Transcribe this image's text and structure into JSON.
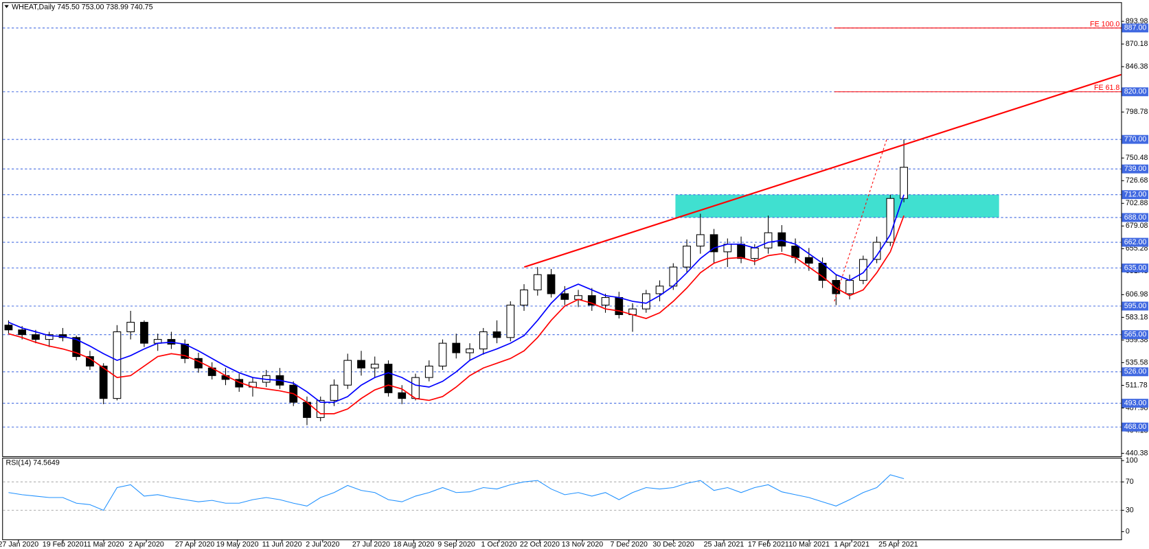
{
  "chart_data": [
    {
      "type": "candlestick",
      "title": "WHEAT,Daily  745.50 753.00 738.99 740.75",
      "x": [
        "20 Jan 2020",
        "27 Jan 2020",
        "3 Feb 2020",
        "10 Feb 2020",
        "17 Feb 2020",
        "24 Feb 2020",
        "2 Mar 2020",
        "9 Mar 2020",
        "16 Mar 2020",
        "23 Mar 2020",
        "30 Mar 2020",
        "6 Apr 2020",
        "13 Apr 2020",
        "20 Apr 2020",
        "27 Apr 2020",
        "4 May 2020",
        "11 May 2020",
        "18 May 2020",
        "25 May 2020",
        "1 Jun 2020",
        "8 Jun 2020",
        "15 Jun 2020",
        "22 Jun 2020",
        "29 Jun 2020",
        "6 Jul 2020",
        "13 Jul 2020",
        "20 Jul 2020",
        "27 Jul 2020",
        "3 Aug 2020",
        "10 Aug 2020",
        "17 Aug 2020",
        "24 Aug 2020",
        "31 Aug 2020",
        "7 Sep 2020",
        "14 Sep 2020",
        "21 Sep 2020",
        "28 Sep 2020",
        "5 Oct 2020",
        "12 Oct 2020",
        "19 Oct 2020",
        "26 Oct 2020",
        "2 Nov 2020",
        "9 Nov 2020",
        "16 Nov 2020",
        "23 Nov 2020",
        "30 Nov 2020",
        "7 Dec 2020",
        "14 Dec 2020",
        "21 Dec 2020",
        "28 Dec 2020",
        "4 Jan 2021",
        "11 Jan 2021",
        "18 Jan 2021",
        "25 Jan 2021",
        "1 Feb 2021",
        "8 Feb 2021",
        "15 Feb 2021",
        "22 Feb 2021",
        "1 Mar 2021",
        "8 Mar 2021",
        "15 Mar 2021",
        "22 Mar 2021",
        "29 Mar 2021",
        "5 Apr 2021",
        "12 Apr 2021",
        "19 Apr 2021",
        "26 Apr 2021"
      ],
      "ohlc": [
        [
          575,
          580,
          566,
          570
        ],
        [
          570,
          574,
          560,
          565
        ],
        [
          565,
          570,
          556,
          560
        ],
        [
          560,
          568,
          552,
          565
        ],
        [
          565,
          572,
          558,
          562
        ],
        [
          562,
          564,
          538,
          542
        ],
        [
          542,
          548,
          528,
          532
        ],
        [
          532,
          535,
          492,
          498
        ],
        [
          498,
          575,
          496,
          568
        ],
        [
          568,
          590,
          560,
          578
        ],
        [
          578,
          580,
          552,
          556
        ],
        [
          556,
          566,
          548,
          560
        ],
        [
          560,
          568,
          550,
          555
        ],
        [
          555,
          560,
          535,
          540
        ],
        [
          540,
          546,
          525,
          530
        ],
        [
          530,
          536,
          518,
          522
        ],
        [
          522,
          530,
          512,
          518
        ],
        [
          518,
          524,
          505,
          510
        ],
        [
          510,
          520,
          500,
          515
        ],
        [
          515,
          528,
          510,
          522
        ],
        [
          522,
          530,
          508,
          512
        ],
        [
          512,
          516,
          490,
          494
        ],
        [
          494,
          500,
          470,
          478
        ],
        [
          478,
          500,
          474,
          496
        ],
        [
          496,
          518,
          490,
          512
        ],
        [
          512,
          545,
          508,
          538
        ],
        [
          538,
          548,
          522,
          530
        ],
        [
          530,
          542,
          520,
          534
        ],
        [
          534,
          538,
          500,
          504
        ],
        [
          504,
          512,
          492,
          498
        ],
        [
          498,
          524,
          496,
          520
        ],
        [
          520,
          538,
          516,
          532
        ],
        [
          532,
          560,
          528,
          556
        ],
        [
          556,
          566,
          540,
          546
        ],
        [
          546,
          556,
          538,
          550
        ],
        [
          550,
          572,
          544,
          568
        ],
        [
          568,
          580,
          556,
          562
        ],
        [
          562,
          600,
          558,
          596
        ],
        [
          596,
          618,
          590,
          612
        ],
        [
          612,
          636,
          606,
          628
        ],
        [
          628,
          634,
          604,
          608
        ],
        [
          608,
          616,
          596,
          602
        ],
        [
          602,
          612,
          594,
          606
        ],
        [
          606,
          614,
          590,
          596
        ],
        [
          596,
          608,
          588,
          604
        ],
        [
          604,
          610,
          582,
          586
        ],
        [
          586,
          598,
          568,
          592
        ],
        [
          592,
          612,
          588,
          608
        ],
        [
          608,
          622,
          600,
          616
        ],
        [
          616,
          640,
          612,
          636
        ],
        [
          636,
          665,
          630,
          658
        ],
        [
          658,
          692,
          650,
          670
        ],
        [
          670,
          676,
          640,
          652
        ],
        [
          652,
          666,
          636,
          660
        ],
        [
          660,
          668,
          640,
          645
        ],
        [
          645,
          660,
          638,
          656
        ],
        [
          656,
          690,
          650,
          672
        ],
        [
          672,
          680,
          652,
          658
        ],
        [
          658,
          666,
          640,
          646
        ],
        [
          646,
          656,
          632,
          640
        ],
        [
          640,
          646,
          614,
          622
        ],
        [
          622,
          628,
          596,
          608
        ],
        [
          608,
          628,
          602,
          622
        ],
        [
          622,
          648,
          618,
          644
        ],
        [
          644,
          668,
          640,
          662
        ],
        [
          662,
          712,
          658,
          708
        ],
        [
          708,
          770,
          704,
          740.75
        ]
      ],
      "overlays": [
        {
          "color": "#0000ff",
          "values": [
            578,
            572,
            568,
            564,
            563,
            560,
            553,
            545,
            538,
            543,
            550,
            556,
            557,
            555,
            548,
            540,
            532,
            525,
            520,
            518,
            517,
            514,
            505,
            494,
            494,
            500,
            512,
            520,
            525,
            520,
            512,
            510,
            516,
            526,
            538,
            545,
            550,
            556,
            564,
            580,
            598,
            612,
            618,
            612,
            606,
            604,
            600,
            598,
            606,
            616,
            630,
            645,
            656,
            660,
            660,
            656,
            662,
            664,
            660,
            650,
            640,
            628,
            622,
            630,
            648,
            670,
            712
          ]
        },
        {
          "color": "#ff0000",
          "values": [
            566,
            562,
            557,
            553,
            550,
            546,
            540,
            530,
            520,
            522,
            532,
            542,
            545,
            543,
            537,
            530,
            522,
            515,
            510,
            508,
            506,
            503,
            494,
            482,
            482,
            487,
            498,
            507,
            512,
            508,
            498,
            496,
            500,
            510,
            522,
            530,
            535,
            540,
            548,
            562,
            580,
            595,
            602,
            598,
            592,
            590,
            586,
            582,
            588,
            600,
            614,
            630,
            640,
            645,
            646,
            642,
            648,
            650,
            646,
            636,
            626,
            614,
            606,
            612,
            630,
            652,
            690
          ]
        }
      ],
      "xlim": [
        "19 Jan 2020",
        "18 Aug 2021"
      ],
      "xticks": [
        "27 Jan 2020",
        "19 Feb 2020",
        "11 Mar 2020",
        "2 Apr 2020",
        "27 Apr 2020",
        "19 May 2020",
        "11 Jun 2020",
        "2 Jul 2020",
        "27 Jul 2020",
        "18 Aug 2020",
        "9 Sep 2020",
        "1 Oct 2020",
        "22 Oct 2020",
        "13 Nov 2020",
        "7 Dec 2020",
        "30 Dec 2020",
        "25 Jan 2021",
        "17 Feb 2021",
        "10 Mar 2021",
        "1 Apr 2021",
        "25 Apr 2021"
      ],
      "ylim": [
        437.3,
        913.3
      ],
      "yticks": [
        893.98,
        870.18,
        846.38,
        798.78,
        750.48,
        726.68,
        702.88,
        679.08,
        655.28,
        631.48,
        606.98,
        583.18,
        559.38,
        535.58,
        511.78,
        487.98,
        464.18,
        440.38
      ],
      "levels": [
        {
          "value": 887,
          "label": "887.00"
        },
        {
          "value": 820,
          "label": "820.00"
        },
        {
          "value": 770,
          "label": "770.00"
        },
        {
          "value": 739,
          "label": "739.00"
        },
        {
          "value": 712,
          "label": "712.00"
        },
        {
          "value": 688,
          "label": "688.00"
        },
        {
          "value": 662,
          "label": "662.00"
        },
        {
          "value": 635,
          "label": "635.00"
        },
        {
          "value": 595,
          "label": "595.00"
        },
        {
          "value": 565,
          "label": "565.00"
        },
        {
          "value": 526,
          "label": "526.00"
        },
        {
          "value": 493,
          "label": "493.00"
        },
        {
          "value": 468,
          "label": "468.00"
        }
      ],
      "level_color": "#4169e1",
      "zone": {
        "x": [
          "31 Dec 2020",
          "16 Jun 2021"
        ],
        "y": [
          688,
          712
        ],
        "color": "#40e0d0"
      },
      "trendline": {
        "x": [
          "14 Oct 2020",
          "18 Aug 2021"
        ],
        "y": [
          636,
          838
        ],
        "color": "#ff0000"
      },
      "fib_line": {
        "x": [
          "23 Mar 2021",
          "19 Apr 2021"
        ],
        "y": [
          600,
          770
        ],
        "color": "#ff0000"
      },
      "fib_levels": [
        {
          "label": "FE 100.0",
          "value": 887,
          "x": "23 Mar 2021"
        },
        {
          "label": "FE 61.8",
          "value": 820,
          "x": "23 Mar 2021"
        }
      ]
    },
    {
      "type": "line",
      "title": "RSI(14) 74.5649",
      "x": [
        "20 Jan 2020",
        "27 Jan 2020",
        "3 Feb 2020",
        "10 Feb 2020",
        "17 Feb 2020",
        "24 Feb 2020",
        "2 Mar 2020",
        "9 Mar 2020",
        "16 Mar 2020",
        "23 Mar 2020",
        "30 Mar 2020",
        "6 Apr 2020",
        "13 Apr 2020",
        "20 Apr 2020",
        "27 Apr 2020",
        "4 May 2020",
        "11 May 2020",
        "18 May 2020",
        "25 May 2020",
        "1 Jun 2020",
        "8 Jun 2020",
        "15 Jun 2020",
        "22 Jun 2020",
        "29 Jun 2020",
        "6 Jul 2020",
        "13 Jul 2020",
        "20 Jul 2020",
        "27 Jul 2020",
        "3 Aug 2020",
        "10 Aug 2020",
        "17 Aug 2020",
        "24 Aug 2020",
        "31 Aug 2020",
        "7 Sep 2020",
        "14 Sep 2020",
        "21 Sep 2020",
        "28 Sep 2020",
        "5 Oct 2020",
        "12 Oct 2020",
        "19 Oct 2020",
        "26 Oct 2020",
        "2 Nov 2020",
        "9 Nov 2020",
        "16 Nov 2020",
        "23 Nov 2020",
        "30 Nov 2020",
        "7 Dec 2020",
        "14 Dec 2020",
        "21 Dec 2020",
        "28 Dec 2020",
        "4 Jan 2021",
        "11 Jan 2021",
        "18 Jan 2021",
        "25 Jan 2021",
        "1 Feb 2021",
        "8 Feb 2021",
        "15 Feb 2021",
        "22 Feb 2021",
        "1 Mar 2021",
        "8 Mar 2021",
        "15 Mar 2021",
        "22 Mar 2021",
        "29 Mar 2021",
        "5 Apr 2021",
        "12 Apr 2021",
        "19 Apr 2021",
        "26 Apr 2021"
      ],
      "values": [
        55,
        52,
        50,
        48,
        48,
        40,
        38,
        30,
        62,
        66,
        50,
        52,
        48,
        45,
        42,
        44,
        40,
        40,
        45,
        48,
        45,
        40,
        36,
        48,
        55,
        65,
        58,
        55,
        45,
        42,
        50,
        55,
        62,
        55,
        56,
        62,
        60,
        66,
        70,
        72,
        60,
        52,
        55,
        50,
        55,
        45,
        55,
        62,
        60,
        62,
        68,
        72,
        58,
        62,
        55,
        62,
        66,
        56,
        52,
        48,
        42,
        36,
        45,
        55,
        62,
        80,
        74.5649
      ],
      "color": "#1e90ff",
      "ylim": [
        -11,
        104
      ],
      "yticks": [
        100,
        70,
        30,
        0
      ]
    }
  ]
}
